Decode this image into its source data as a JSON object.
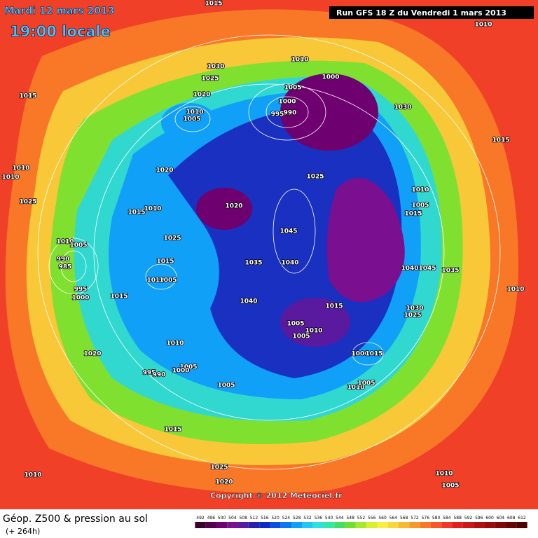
{
  "header": {
    "date": "Mardi 12 mars 2013",
    "time": "19:00 locale",
    "run": "Run GFS 18 Z du Vendredi 1 mars 2013"
  },
  "map": {
    "copyright": "Copyright © 2012 Meteociel.fr",
    "isobar_labels": [
      "1015",
      "1010",
      "1030",
      "1010",
      "1025",
      "1000",
      "1005",
      "1020",
      "1015",
      "1000",
      "1030",
      "1010",
      "995",
      "990",
      "1005",
      "1015",
      "1010",
      "1010",
      "1020",
      "1025",
      "1010",
      "1025",
      "1010",
      "1015",
      "1020",
      "1005",
      "1015",
      "1045",
      "1025",
      "1010",
      "1005",
      "990",
      "985",
      "1015",
      "1035",
      "1040",
      "1040",
      "1045",
      "1035",
      "1010",
      "1005",
      "1010",
      "995",
      "1000",
      "1015",
      "1040",
      "1015",
      "1030",
      "1025",
      "1005",
      "1010",
      "1005",
      "1010",
      "1020",
      "1000",
      "1015",
      "995",
      "990",
      "1005",
      "1000",
      "1005",
      "1010",
      "1005",
      "1015",
      "1025",
      "1010",
      "1010",
      "1005",
      "1020"
    ]
  },
  "footer": {
    "title": "Géop. Z500 & pression au sol",
    "lead": "(+ 264h)",
    "scale_levels": [
      492,
      496,
      500,
      504,
      508,
      512,
      516,
      520,
      524,
      528,
      532,
      536,
      540,
      544,
      548,
      552,
      556,
      560,
      564,
      568,
      572,
      576,
      580,
      584,
      588,
      592,
      596,
      600,
      604,
      608,
      612
    ],
    "scale_colors": [
      "#3a0030",
      "#52004a",
      "#6e0070",
      "#7a1090",
      "#5a1aa0",
      "#2a20b0",
      "#0a28c8",
      "#0a50e0",
      "#0a78f0",
      "#10a0f8",
      "#20c8f8",
      "#30e0e0",
      "#30e8a8",
      "#40e060",
      "#70e030",
      "#a8e828",
      "#d8f030",
      "#f8f040",
      "#f8d838",
      "#f8b830",
      "#f89828",
      "#f87828",
      "#f85828",
      "#f03828",
      "#e02020",
      "#c81818",
      "#b01010",
      "#980c0c",
      "#800808",
      "#680404",
      "#500000"
    ]
  }
}
